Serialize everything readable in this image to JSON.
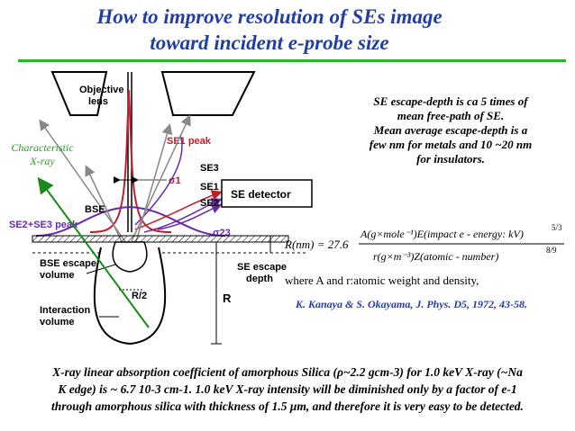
{
  "title": {
    "line1": "How to improve resolution of SEs image",
    "line2": "toward incident e-probe size"
  },
  "diagram": {
    "objective_lens": "Objective\nlens",
    "se1_peak": "SE1 peak",
    "se3": "SE3",
    "se1": "SE1",
    "se2": "SE2",
    "sigma1": "σ1",
    "bse": "BSE",
    "se_detector": "SE detector",
    "se2_se3_peak": "SE2+SE3 peak",
    "sigma23": "σ23",
    "se_escape_depth": "SE escape\ndepth",
    "bse_escape_volume": "BSE escape\nvolume",
    "r_half": "R/2",
    "interaction_volume": "Interaction\nvolume",
    "r": "R",
    "characteristic_xray": "Characteristic\nX-ray"
  },
  "note": {
    "lines": [
      "SE escape-depth is ca 5 times of",
      "mean free-path of SE.",
      "Mean average escape-depth is a",
      "few nm for metals and 10 ~20 nm",
      "for insulators."
    ]
  },
  "formula": {
    "lhs": "R(nm) = 27.6",
    "numerator": "A(g×mole⁻¹)E(impact e - energy: kV)",
    "numerator_exp": "5/3",
    "denominator": "r(g×m⁻³)Z(atomic - number)",
    "denominator_exp": "8/9",
    "where": "where A and r:atomic weight and density,"
  },
  "reference": "K. Kanaya & S. Okayama, J. Phys. D5, 1972, 43-58.",
  "bottom_text": {
    "line1": "X-ray linear absorption coefficient of amorphous Silica (ρ~2.2 gcm-3) for 1.0 keV X-ray (~Na",
    "line2": "K edge) is ~ 6.7 10-3 cm-1.  1.0 keV X-ray intensity will be diminished only by a factor of  e-1",
    "line3": "through amorphous silica with thickness of 1.5 μm, and therefore it is very easy to be detected."
  },
  "colors": {
    "title": "#1f3ea8",
    "rule": "#2bb52b",
    "se1_peak": "#c0202a",
    "se23": "#6a2aa8",
    "xray": "#1a8a1a",
    "reference": "#1f3ea8"
  }
}
